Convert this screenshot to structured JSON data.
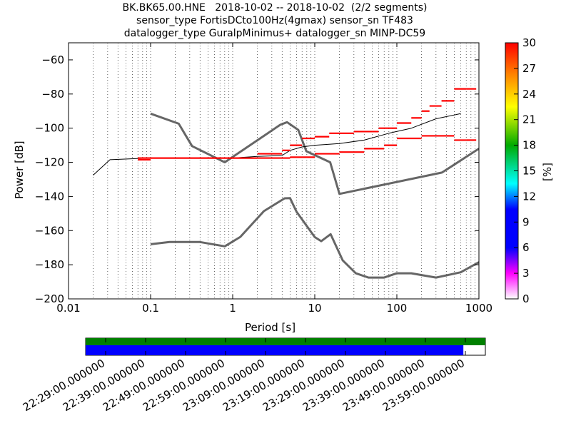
{
  "title": {
    "line1": "BK.BK65.00.HNE   2018-10-02 -- 2018-10-02  (2/2 segments)",
    "line2": "sensor_type FortisDCto100Hz(4gmax) sensor_sn TF483",
    "line3": "datalogger_type GuralpMinimus+ datalogger_sn MINP-DC59"
  },
  "chart_data": {
    "type": "line",
    "xscale": "log",
    "xlabel": "Period [s]",
    "ylabel": "Power [dB]",
    "xlim": [
      0.01,
      1000
    ],
    "ylim": [
      -200,
      -50
    ],
    "x_ticks": [
      "0.01",
      "0.1",
      "1",
      "10",
      "100",
      "1000"
    ],
    "y_ticks": [
      "−60",
      "−80",
      "−100",
      "−120",
      "−140",
      "−160",
      "−180",
      "−200"
    ],
    "grid": "dotted vertical at each decade subdivision",
    "colorbar": {
      "label": "[%]",
      "range": [
        0,
        30
      ],
      "ticks": [
        "0",
        "3",
        "6",
        "9",
        "12",
        "15",
        "18",
        "21",
        "24",
        "27",
        "30"
      ],
      "colormap": "pqlx (white-magenta-blue-cyan-green-yellow-orange-red)"
    },
    "series": [
      {
        "role": "noise_model_high",
        "color": "#666666",
        "points": [
          [
            0.1,
            -91.5
          ],
          [
            0.22,
            -97.4
          ],
          [
            0.32,
            -110.5
          ],
          [
            0.8,
            -120.0
          ],
          [
            3.8,
            -98.0
          ],
          [
            4.6,
            -96.5
          ],
          [
            6.3,
            -101.0
          ],
          [
            7.9,
            -113.5
          ],
          [
            15.4,
            -120.0
          ],
          [
            20,
            -138.5
          ],
          [
            354.8,
            -126.0
          ],
          [
            1000,
            -112
          ]
        ]
      },
      {
        "role": "noise_model_low",
        "color": "#666666",
        "points": [
          [
            0.1,
            -168.0
          ],
          [
            0.17,
            -166.7
          ],
          [
            0.4,
            -166.7
          ],
          [
            0.8,
            -169.2
          ],
          [
            1.24,
            -163.7
          ],
          [
            2.4,
            -148.6
          ],
          [
            4.3,
            -141.1
          ],
          [
            5.0,
            -141.0
          ],
          [
            6.0,
            -149.0
          ],
          [
            10.0,
            -163.8
          ],
          [
            12.0,
            -166.2
          ],
          [
            15.6,
            -162.1
          ],
          [
            21.9,
            -177.5
          ],
          [
            31.6,
            -185.0
          ],
          [
            45,
            -187.5
          ],
          [
            70,
            -187.5
          ],
          [
            100,
            -185.0
          ],
          [
            150,
            -185.0
          ],
          [
            300,
            -187.5
          ],
          [
            600,
            -184.4
          ],
          [
            1000,
            -178.5
          ]
        ]
      },
      {
        "role": "mode_black",
        "color": "#000000",
        "points": [
          [
            0.02,
            -127.5
          ],
          [
            0.032,
            -118.5
          ],
          [
            0.1,
            -117.5
          ],
          [
            1,
            -117.5
          ],
          [
            2,
            -116.5
          ],
          [
            4,
            -116
          ],
          [
            5,
            -113
          ],
          [
            7,
            -111
          ],
          [
            10,
            -110
          ],
          [
            20,
            -109
          ],
          [
            40,
            -107
          ],
          [
            80,
            -103
          ],
          [
            150,
            -100
          ],
          [
            300,
            -94.5
          ],
          [
            600,
            -91.5
          ]
        ]
      },
      {
        "role": "histogram_red_upper",
        "color": "#ff0000",
        "points": [
          [
            0.07,
            -117.5
          ],
          [
            0.1,
            -117.5
          ],
          [
            1,
            -117.5
          ],
          [
            2,
            -115
          ],
          [
            4,
            -113
          ],
          [
            5,
            -110
          ],
          [
            7,
            -106
          ],
          [
            10,
            -105
          ],
          [
            15,
            -103
          ],
          [
            30,
            -102
          ],
          [
            60,
            -100
          ],
          [
            100,
            -97
          ],
          [
            150,
            -94
          ],
          [
            200,
            -90
          ],
          [
            250,
            -87
          ],
          [
            350,
            -84
          ],
          [
            500,
            -77
          ],
          [
            700,
            -77
          ]
        ]
      },
      {
        "role": "histogram_red_lower",
        "color": "#ff0000",
        "points": [
          [
            0.07,
            -118.5
          ],
          [
            0.1,
            -117.5
          ],
          [
            1,
            -117.5
          ],
          [
            2,
            -117.5
          ],
          [
            5,
            -117
          ],
          [
            10,
            -115
          ],
          [
            20,
            -114
          ],
          [
            40,
            -112
          ],
          [
            70,
            -110
          ],
          [
            100,
            -106
          ],
          [
            200,
            -104.5
          ],
          [
            400,
            -104.5
          ],
          [
            500,
            -107
          ],
          [
            700,
            -107
          ]
        ]
      }
    ]
  },
  "timeline": {
    "tick_labels": [
      "22:29:00.000000",
      "22:39:00.000000",
      "22:49:00.000000",
      "22:59:00.000000",
      "23:09:00.000000",
      "23:19:00.000000",
      "23:29:00.000000",
      "23:39:00.000000",
      "23:49:00.000000",
      "23:59:00.000000"
    ],
    "data_coverage_fraction": 1.0,
    "psd_coverage_fraction": 0.945,
    "data_color": "#008000",
    "psd_color": "#0000ff"
  }
}
